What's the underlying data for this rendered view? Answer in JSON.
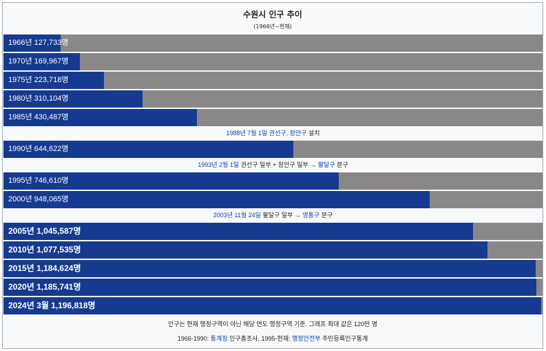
{
  "chart_data": {
    "type": "bar",
    "orientation": "horizontal",
    "title": "수원시 인구 추이",
    "subtitle": "(1966년~현재)",
    "xmax": 1200000,
    "bar_color": "#163a8f",
    "track_color": "#888888",
    "series": [
      {
        "category": "1966년",
        "value": 127733,
        "label": "1966년 127,733명"
      },
      {
        "category": "1970년",
        "value": 169967,
        "label": "1970년 169,967명"
      },
      {
        "category": "1975년",
        "value": 223718,
        "label": "1975년 223,718명"
      },
      {
        "category": "1980년",
        "value": 310104,
        "label": "1980년 310,104명"
      },
      {
        "category": "1985년",
        "value": 430487,
        "label": "1985년 430,487명"
      },
      {
        "category": "1990년",
        "value": 644622,
        "label": "1990년 644,622명"
      },
      {
        "category": "1995년",
        "value": 746610,
        "label": "1995년 746,610명"
      },
      {
        "category": "2000년",
        "value": 948065,
        "label": "2000년 948,065명"
      },
      {
        "category": "2005년",
        "value": 1045587,
        "label": "2005년 1,045,587명"
      },
      {
        "category": "2010년",
        "value": 1077535,
        "label": "2010년 1,077,535명"
      },
      {
        "category": "2015년",
        "value": 1184624,
        "label": "2015년 1,184,624명"
      },
      {
        "category": "2020년",
        "value": 1185741,
        "label": "2020년 1,185,741명"
      },
      {
        "category": "2024년 3월",
        "value": 1196818,
        "label": "2024년 3월 1,196,818명"
      }
    ],
    "annotations": [
      {
        "after": "1985년",
        "link": "1988년 7월 1일 권선구, 장안구",
        "text": " 설치"
      },
      {
        "after": "1990년",
        "link": "1993년 2월 1일",
        "text": " 권선구 일부 + 장안구 일부 → ",
        "link2": "팔달구",
        "text2": " 분구"
      },
      {
        "after": "2000년",
        "link": "2003년 11월 24일",
        "text": " 팔달구 일부 → ",
        "link2": "영통구",
        "text2": " 분구"
      }
    ]
  },
  "footer": {
    "line1": "인구는 현재 행정구역이 아닌 해당 연도 행정구역 기준. 그래프 최대 값은 120만 명",
    "line2_prefix": "1966-1990: ",
    "line2_link1": "통계청",
    "line2_mid": " 인구총조사, 1995-현재: ",
    "line2_link2": "행정안전부",
    "line2_suffix": " 주민등록인구통계"
  }
}
